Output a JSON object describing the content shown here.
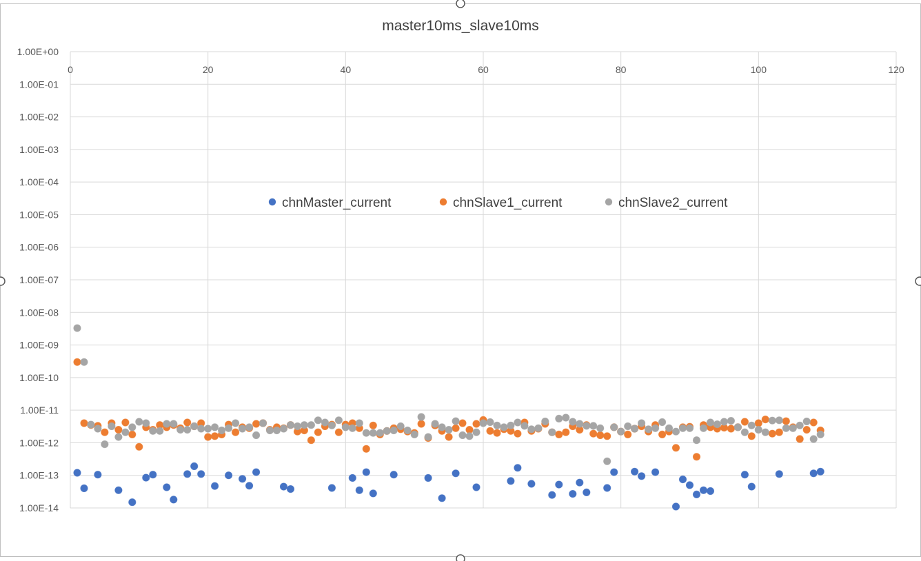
{
  "chart_data": {
    "type": "scatter",
    "title": "master10ms_slave10ms",
    "xlabel": "",
    "ylabel": "",
    "xlim": [
      0,
      120
    ],
    "ylim": [
      1e-14,
      1
    ],
    "y_scale": "log",
    "x_ticks": [
      0,
      20,
      40,
      60,
      80,
      100,
      120
    ],
    "x_tick_labels": [
      "0",
      "20",
      "40",
      "60",
      "80",
      "100",
      "120"
    ],
    "y_ticks": [
      1,
      0.1,
      0.01,
      0.001,
      0.0001,
      1e-05,
      1e-06,
      1e-07,
      1e-08,
      1e-09,
      1e-10,
      1e-11,
      1e-12,
      1e-13,
      1e-14
    ],
    "y_tick_labels": [
      "1.00E+00",
      "1.00E-01",
      "1.00E-02",
      "1.00E-03",
      "1.00E-04",
      "1.00E-05",
      "1.00E-06",
      "1.00E-07",
      "1.00E-08",
      "1.00E-09",
      "1.00E-10",
      "1.00E-11",
      "1.00E-12",
      "1.00E-13",
      "1.00E-14"
    ],
    "grid": true,
    "legend_position": "inside-top-center",
    "series": [
      {
        "name": "chnMaster_current",
        "color": "#4472C4",
        "x": [
          1,
          2,
          4,
          7,
          9,
          11,
          12,
          14,
          15,
          17,
          18,
          19,
          21,
          23,
          25,
          26,
          27,
          31,
          32,
          38,
          41,
          42,
          43,
          44,
          47,
          52,
          54,
          56,
          59,
          64,
          65,
          67,
          70,
          71,
          73,
          74,
          75,
          78,
          79,
          82,
          83,
          85,
          88,
          89,
          90,
          91,
          92,
          93,
          98,
          99,
          103,
          108,
          109
        ],
        "y": [
          1.2e-13,
          4e-14,
          1.05e-13,
          3.5e-14,
          1.5e-14,
          8.5e-14,
          1.05e-13,
          4.3e-14,
          1.8e-14,
          1.1e-13,
          1.9e-13,
          1.1e-13,
          4.7e-14,
          1e-13,
          7.8e-14,
          4.8e-14,
          1.25e-13,
          4.5e-14,
          3.8e-14,
          4.1e-14,
          8.3e-14,
          3.5e-14,
          1.25e-13,
          2.8e-14,
          1.05e-13,
          8.3e-14,
          2e-14,
          1.15e-13,
          4.3e-14,
          6.7e-14,
          1.7e-13,
          5.5e-14,
          2.5e-14,
          5.2e-14,
          2.7e-14,
          6e-14,
          3e-14,
          4.1e-14,
          1.25e-13,
          1.3e-13,
          9.5e-14,
          1.25e-13,
          1.1e-14,
          7.5e-14,
          5e-14,
          2.6e-14,
          3.5e-14,
          3.3e-14,
          1.05e-13,
          4.5e-14,
          1.1e-13,
          1.15e-13,
          1.3e-13
        ]
      },
      {
        "name": "chnSlave1_current",
        "color": "#ED7D31",
        "x": [
          1,
          2,
          3,
          4,
          5,
          6,
          7,
          8,
          9,
          10,
          11,
          12,
          13,
          14,
          15,
          16,
          17,
          18,
          19,
          20,
          21,
          22,
          23,
          24,
          25,
          26,
          27,
          28,
          29,
          30,
          31,
          32,
          33,
          34,
          35,
          36,
          37,
          38,
          39,
          40,
          41,
          42,
          43,
          44,
          45,
          46,
          47,
          48,
          49,
          50,
          51,
          52,
          53,
          54,
          55,
          56,
          57,
          58,
          59,
          60,
          61,
          62,
          63,
          64,
          65,
          66,
          67,
          68,
          69,
          70,
          71,
          72,
          73,
          74,
          75,
          76,
          77,
          78,
          79,
          80,
          81,
          82,
          83,
          84,
          85,
          86,
          87,
          88,
          89,
          90,
          91,
          92,
          93,
          94,
          95,
          96,
          97,
          98,
          99,
          100,
          101,
          102,
          103,
          104,
          105,
          106,
          107,
          108,
          109
        ],
        "y": [
          3e-10,
          4e-12,
          3.5e-12,
          3.3e-12,
          2.1e-12,
          4e-12,
          2.5e-12,
          4.2e-12,
          1.8e-12,
          7.5e-13,
          3e-12,
          2.5e-12,
          3.5e-12,
          3e-12,
          3.5e-12,
          2.8e-12,
          4.2e-12,
          3.2e-12,
          4e-12,
          1.5e-12,
          1.6e-12,
          1.8e-12,
          3.6e-12,
          2.1e-12,
          3e-12,
          2.8e-12,
          3.8e-12,
          4e-12,
          2.5e-12,
          3e-12,
          2.8e-12,
          3.5e-12,
          2.2e-12,
          2.4e-12,
          1.2e-12,
          2.1e-12,
          3.2e-12,
          3.6e-12,
          2.1e-12,
          3.6e-12,
          4e-12,
          2.8e-12,
          6.5e-13,
          3.4e-12,
          1.8e-12,
          2.3e-12,
          2.8e-12,
          2.6e-12,
          2.2e-12,
          2e-12,
          3.8e-12,
          1.4e-12,
          3.4e-12,
          2.3e-12,
          1.5e-12,
          2.8e-12,
          4e-12,
          2.5e-12,
          3.8e-12,
          5e-12,
          2.3e-12,
          2e-12,
          2.6e-12,
          2.3e-12,
          1.9e-12,
          4.2e-12,
          2.3e-12,
          2.7e-12,
          3.8e-12,
          2.1e-12,
          1.8e-12,
          2.1e-12,
          3.2e-12,
          2.5e-12,
          3.5e-12,
          1.9e-12,
          1.7e-12,
          1.6e-12,
          3e-12,
          2.2e-12,
          1.8e-12,
          2.7e-12,
          3.2e-12,
          2.2e-12,
          3.5e-12,
          1.8e-12,
          2.2e-12,
          7e-13,
          3e-12,
          3.1e-12,
          3.7e-13,
          3.5e-12,
          3e-12,
          2.7e-12,
          2.9e-12,
          2.7e-12,
          3e-12,
          4.4e-12,
          1.6e-12,
          4e-12,
          5.2e-12,
          1.9e-12,
          2.1e-12,
          4.6e-12,
          3e-12,
          1.3e-12,
          2.5e-12,
          4.2e-12,
          2.4e-12
        ]
      },
      {
        "name": "chnSlave2_current",
        "color": "#A5A5A5",
        "x": [
          1,
          2,
          3,
          4,
          5,
          6,
          7,
          8,
          9,
          10,
          11,
          12,
          13,
          14,
          15,
          16,
          17,
          18,
          19,
          20,
          21,
          22,
          23,
          24,
          25,
          26,
          27,
          28,
          29,
          30,
          31,
          32,
          33,
          34,
          35,
          36,
          37,
          38,
          39,
          40,
          41,
          42,
          43,
          44,
          45,
          46,
          47,
          48,
          49,
          50,
          51,
          52,
          53,
          54,
          55,
          56,
          57,
          58,
          59,
          60,
          61,
          62,
          63,
          64,
          65,
          66,
          67,
          68,
          69,
          70,
          71,
          72,
          73,
          74,
          75,
          76,
          77,
          78,
          79,
          80,
          81,
          82,
          83,
          84,
          85,
          86,
          87,
          88,
          89,
          90,
          91,
          92,
          93,
          94,
          95,
          96,
          97,
          98,
          99,
          100,
          101,
          102,
          103,
          104,
          105,
          106,
          107,
          108,
          109
        ],
        "y": [
          3.3e-09,
          3e-10,
          3.6e-12,
          2.7e-12,
          9e-13,
          3.2e-12,
          1.5e-12,
          2.1e-12,
          3e-12,
          4.4e-12,
          4e-12,
          2.3e-12,
          2.3e-12,
          3.8e-12,
          3.8e-12,
          2.5e-12,
          2.5e-12,
          3.2e-12,
          2.7e-12,
          2.7e-12,
          3e-12,
          2.4e-12,
          2.8e-12,
          4e-12,
          2.7e-12,
          3e-12,
          1.7e-12,
          4e-12,
          2.4e-12,
          2.4e-12,
          2.7e-12,
          3.5e-12,
          3.2e-12,
          3.5e-12,
          3.5e-12,
          4.9e-12,
          4.2e-12,
          3.4e-12,
          4.9e-12,
          3e-12,
          2.8e-12,
          4e-12,
          2e-12,
          2e-12,
          2e-12,
          2.3e-12,
          2.4e-12,
          3.2e-12,
          2.4e-12,
          1.8e-12,
          6.2e-12,
          1.5e-12,
          3.8e-12,
          3e-12,
          2.5e-12,
          4.6e-12,
          1.7e-12,
          1.6e-12,
          2.1e-12,
          4e-12,
          4.3e-12,
          3.4e-12,
          3e-12,
          3.4e-12,
          4.2e-12,
          3.3e-12,
          2.6e-12,
          2.8e-12,
          4.5e-12,
          2.1e-12,
          5.5e-12,
          5.9e-12,
          4.4e-12,
          3.8e-12,
          3.3e-12,
          3.3e-12,
          2.8e-12,
          2.7e-13,
          3e-12,
          2.2e-12,
          3.2e-12,
          2.7e-12,
          4e-12,
          2.6e-12,
          2.8e-12,
          4.3e-12,
          2.8e-12,
          2.2e-12,
          2.8e-12,
          2.8e-12,
          1.2e-12,
          2.8e-12,
          4.2e-12,
          3.7e-12,
          4.4e-12,
          4.7e-12,
          3e-12,
          2.1e-12,
          3.4e-12,
          2.5e-12,
          2.1e-12,
          4.8e-12,
          4.9e-12,
          2.8e-12,
          2.8e-12,
          3.4e-12,
          4.5e-12,
          1.3e-12,
          1.8e-12
        ]
      }
    ]
  }
}
